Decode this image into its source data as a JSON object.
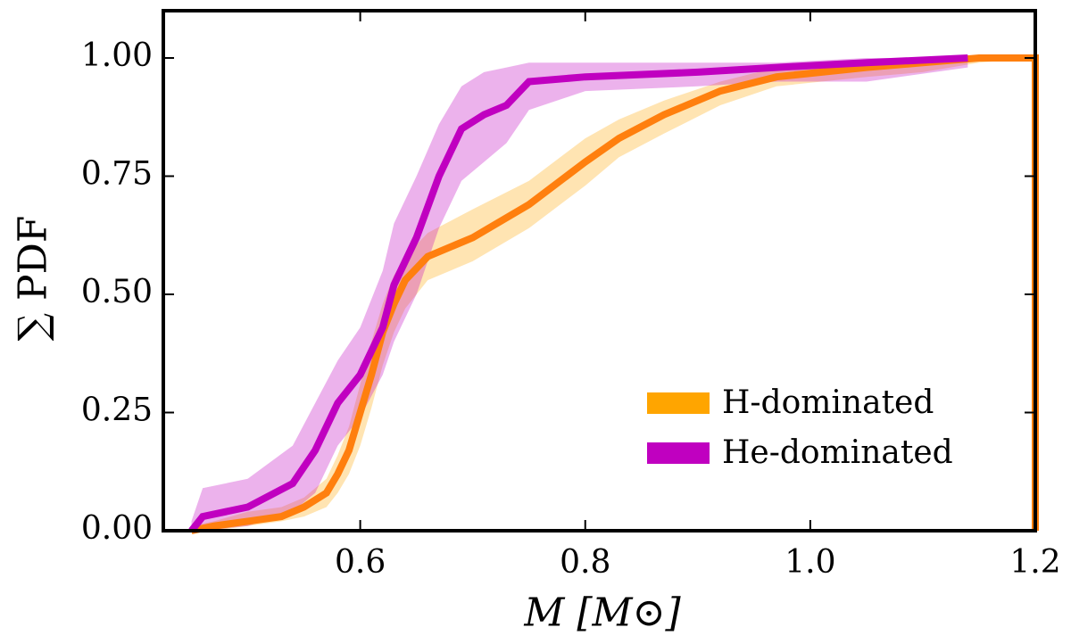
{
  "chart_data": {
    "type": "line",
    "xlabel": "M [M⊙]",
    "ylabel": "∑ PDF",
    "xlim": [
      0.425,
      1.2
    ],
    "ylim": [
      0,
      1.1
    ],
    "xticks": [
      0.6,
      0.8,
      {
        "value": 1.0,
        "label": "1.0"
      },
      1.2
    ],
    "yticks": [
      {
        "value": 0,
        "label": "0.00"
      },
      {
        "value": 0.25,
        "label": "0.25"
      },
      {
        "value": 0.5,
        "label": "0.50"
      },
      {
        "value": 0.75,
        "label": "0.75"
      },
      {
        "value": 1.0,
        "label": "1.00"
      }
    ],
    "legend": "lower right",
    "series": [
      {
        "name": "H-dominated",
        "color": "#ffa500",
        "line_color": "#ff7f0e",
        "x": [
          0.45,
          0.47,
          0.5,
          0.53,
          0.55,
          0.57,
          0.58,
          0.59,
          0.6,
          0.61,
          0.62,
          0.63,
          0.64,
          0.66,
          0.7,
          0.75,
          0.8,
          0.83,
          0.87,
          0.92,
          0.97,
          1.05,
          1.1,
          1.15,
          1.2,
          1.2
        ],
        "values": [
          0.0,
          0.01,
          0.02,
          0.03,
          0.05,
          0.08,
          0.12,
          0.17,
          0.25,
          0.33,
          0.42,
          0.48,
          0.53,
          0.58,
          0.62,
          0.69,
          0.78,
          0.83,
          0.88,
          0.93,
          0.96,
          0.98,
          0.99,
          1.0,
          1.0,
          0.0
        ],
        "upper": [
          0.01,
          0.02,
          0.04,
          0.05,
          0.07,
          0.11,
          0.16,
          0.22,
          0.31,
          0.4,
          0.48,
          0.54,
          0.58,
          0.63,
          0.68,
          0.74,
          0.83,
          0.87,
          0.91,
          0.95,
          0.98,
          0.99,
          1.0,
          1.0,
          1.0,
          1.0
        ],
        "lower": [
          0.0,
          0.0,
          0.01,
          0.02,
          0.03,
          0.05,
          0.08,
          0.12,
          0.18,
          0.26,
          0.35,
          0.42,
          0.47,
          0.53,
          0.57,
          0.64,
          0.73,
          0.79,
          0.84,
          0.9,
          0.94,
          0.96,
          0.97,
          0.99,
          1.0,
          1.0
        ]
      },
      {
        "name": "He-dominated",
        "color": "#c000c0",
        "line_color": "#c000c0",
        "x": [
          0.45,
          0.46,
          0.5,
          0.54,
          0.56,
          0.58,
          0.6,
          0.62,
          0.63,
          0.65,
          0.67,
          0.69,
          0.71,
          0.73,
          0.75,
          0.8,
          0.9,
          0.97,
          1.05,
          1.14
        ],
        "values": [
          0.0,
          0.03,
          0.05,
          0.1,
          0.17,
          0.27,
          0.33,
          0.43,
          0.52,
          0.62,
          0.75,
          0.85,
          0.88,
          0.9,
          0.95,
          0.96,
          0.97,
          0.98,
          0.99,
          1.0
        ],
        "upper": [
          0.02,
          0.09,
          0.11,
          0.18,
          0.27,
          0.36,
          0.43,
          0.55,
          0.65,
          0.75,
          0.86,
          0.94,
          0.97,
          0.98,
          0.99,
          0.99,
          0.99,
          0.99,
          1.0,
          1.0
        ],
        "lower": [
          0.0,
          0.0,
          0.01,
          0.04,
          0.08,
          0.18,
          0.24,
          0.33,
          0.4,
          0.5,
          0.64,
          0.74,
          0.78,
          0.82,
          0.89,
          0.93,
          0.94,
          0.95,
          0.95,
          0.98
        ]
      }
    ]
  }
}
